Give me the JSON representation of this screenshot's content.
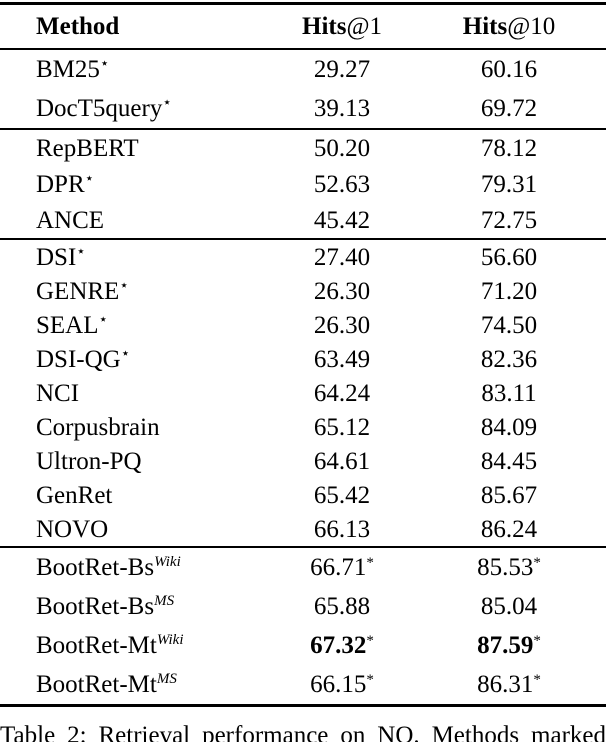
{
  "table": {
    "columns": {
      "method": "Method",
      "hits1": {
        "strong": "Hits",
        "suffix": "@1"
      },
      "hits10": {
        "strong": "Hits",
        "suffix": "@10"
      }
    },
    "sections": [
      {
        "rows": [
          {
            "method": "BM25",
            "method_sup": "⋆",
            "method_sup_italic": false,
            "hits1": "29.27",
            "hits1_sup": "",
            "hits10": "60.16",
            "hits10_sup": "",
            "bold_values": false
          },
          {
            "method": "DocT5query",
            "method_sup": "⋆",
            "method_sup_italic": false,
            "hits1": "39.13",
            "hits1_sup": "",
            "hits10": "69.72",
            "hits10_sup": "",
            "bold_values": false
          }
        ]
      },
      {
        "rows": [
          {
            "method": "RepBERT",
            "method_sup": "",
            "method_sup_italic": false,
            "hits1": "50.20",
            "hits1_sup": "",
            "hits10": "78.12",
            "hits10_sup": "",
            "bold_values": false
          },
          {
            "method": "DPR",
            "method_sup": "⋆",
            "method_sup_italic": false,
            "hits1": "52.63",
            "hits1_sup": "",
            "hits10": "79.31",
            "hits10_sup": "",
            "bold_values": false
          },
          {
            "method": "ANCE",
            "method_sup": "",
            "method_sup_italic": false,
            "hits1": "45.42",
            "hits1_sup": "",
            "hits10": "72.75",
            "hits10_sup": "",
            "bold_values": false
          }
        ]
      },
      {
        "rows": [
          {
            "method": "DSI",
            "method_sup": "⋆",
            "method_sup_italic": false,
            "hits1": "27.40",
            "hits1_sup": "",
            "hits10": "56.60",
            "hits10_sup": "",
            "bold_values": false
          },
          {
            "method": "GENRE",
            "method_sup": "⋆",
            "method_sup_italic": false,
            "hits1": "26.30",
            "hits1_sup": "",
            "hits10": "71.20",
            "hits10_sup": "",
            "bold_values": false
          },
          {
            "method": "SEAL",
            "method_sup": "⋆",
            "method_sup_italic": false,
            "hits1": "26.30",
            "hits1_sup": "",
            "hits10": "74.50",
            "hits10_sup": "",
            "bold_values": false
          },
          {
            "method": "DSI-QG",
            "method_sup": "⋆",
            "method_sup_italic": false,
            "hits1": "63.49",
            "hits1_sup": "",
            "hits10": "82.36",
            "hits10_sup": "",
            "bold_values": false
          },
          {
            "method": "NCI",
            "method_sup": "",
            "method_sup_italic": false,
            "hits1": "64.24",
            "hits1_sup": "",
            "hits10": "83.11",
            "hits10_sup": "",
            "bold_values": false
          },
          {
            "method": "Corpusbrain",
            "method_sup": "",
            "method_sup_italic": false,
            "hits1": "65.12",
            "hits1_sup": "",
            "hits10": "84.09",
            "hits10_sup": "",
            "bold_values": false
          },
          {
            "method": "Ultron-PQ",
            "method_sup": "",
            "method_sup_italic": false,
            "hits1": "64.61",
            "hits1_sup": "",
            "hits10": "84.45",
            "hits10_sup": "",
            "bold_values": false
          },
          {
            "method": "GenRet",
            "method_sup": "",
            "method_sup_italic": false,
            "hits1": "65.42",
            "hits1_sup": "",
            "hits10": "85.67",
            "hits10_sup": "",
            "bold_values": false
          },
          {
            "method": "NOVO",
            "method_sup": "",
            "method_sup_italic": false,
            "hits1": "66.13",
            "hits1_sup": "",
            "hits10": "86.24",
            "hits10_sup": "",
            "bold_values": false
          }
        ]
      },
      {
        "rows": [
          {
            "method": "BootRet-Bs",
            "method_sup": "Wiki",
            "method_sup_italic": true,
            "hits1": "66.71",
            "hits1_sup": "*",
            "hits10": "85.53",
            "hits10_sup": "*",
            "bold_values": false
          },
          {
            "method": "BootRet-Bs",
            "method_sup": "MS",
            "method_sup_italic": true,
            "hits1": "65.88",
            "hits1_sup": "",
            "hits10": "85.04",
            "hits10_sup": "",
            "bold_values": false
          },
          {
            "method": "BootRet-Mt",
            "method_sup": "Wiki",
            "method_sup_italic": true,
            "hits1": "67.32",
            "hits1_sup": "*",
            "hits10": "87.59",
            "hits10_sup": "*",
            "bold_values": true
          },
          {
            "method": "BootRet-Mt",
            "method_sup": "MS",
            "method_sup_italic": true,
            "hits1": "66.15",
            "hits1_sup": "*",
            "hits10": "86.31",
            "hits10_sup": "*",
            "bold_values": false
          }
        ]
      }
    ]
  },
  "caption": "Table 2: Retrieval performance on NQ. Methods marked"
}
